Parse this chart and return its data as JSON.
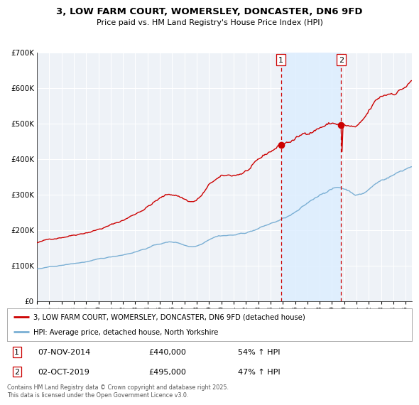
{
  "title": "3, LOW FARM COURT, WOMERSLEY, DONCASTER, DN6 9FD",
  "subtitle": "Price paid vs. HM Land Registry's House Price Index (HPI)",
  "legend_line1": "3, LOW FARM COURT, WOMERSLEY, DONCASTER, DN6 9FD (detached house)",
  "legend_line2": "HPI: Average price, detached house, North Yorkshire",
  "footnote": "Contains HM Land Registry data © Crown copyright and database right 2025.\nThis data is licensed under the Open Government Licence v3.0.",
  "sale1_date": "07-NOV-2014",
  "sale1_price": "£440,000",
  "sale1_hpi": "54% ↑ HPI",
  "sale2_date": "02-OCT-2019",
  "sale2_price": "£495,000",
  "sale2_hpi": "47% ↑ HPI",
  "property_color": "#cc0000",
  "hpi_color": "#7aafd4",
  "shade_color": "#ddeeff",
  "vline_color": "#cc0000",
  "plot_bg_color": "#eef2f7",
  "grid_color": "#ffffff",
  "ylim": [
    0,
    700000
  ],
  "yticks": [
    0,
    100000,
    200000,
    300000,
    400000,
    500000,
    600000,
    700000
  ],
  "ytick_labels": [
    "£0",
    "£100K",
    "£200K",
    "£300K",
    "£400K",
    "£500K",
    "£600K",
    "£700K"
  ],
  "sale1_year": 2014.85,
  "sale2_year": 2019.75,
  "sale1_value": 440000,
  "sale2_value": 495000,
  "xmin": 1995,
  "xmax": 2025.5
}
